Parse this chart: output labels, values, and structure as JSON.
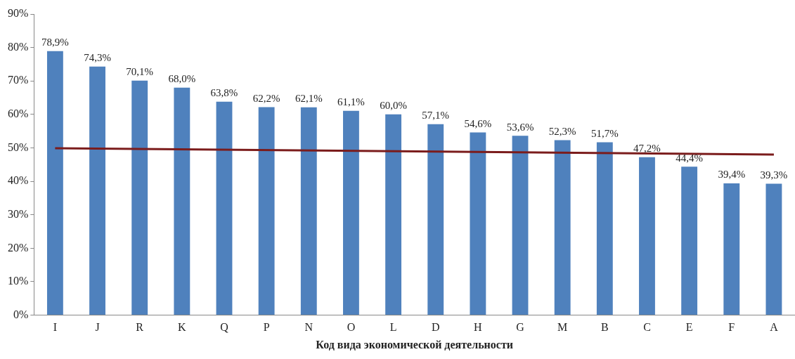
{
  "chart_data": {
    "type": "bar",
    "xlabel": "Код вида экономической деятельности",
    "categories": [
      "I",
      "J",
      "R",
      "K",
      "Q",
      "P",
      "N",
      "O",
      "L",
      "D",
      "H",
      "G",
      "M",
      "B",
      "C",
      "E",
      "F",
      "A"
    ],
    "series": [
      {
        "color": "#4f81bd",
        "values": [
          78.9,
          74.3,
          70.1,
          68.0,
          63.8,
          62.2,
          62.1,
          61.1,
          60.0,
          57.1,
          54.6,
          53.6,
          52.3,
          51.7,
          47.2,
          44.4,
          39.4,
          39.3
        ],
        "value_labels": [
          "78,9%",
          "74,3%",
          "70,1%",
          "68,0%",
          "63,8%",
          "62,2%",
          "62,1%",
          "61,1%",
          "60,0%",
          "57,1%",
          "54,6%",
          "53,6%",
          "52,3%",
          "51,7%",
          "47,2%",
          "44,4%",
          "39,4%",
          "39,3%"
        ]
      },
      {
        "type": "line",
        "color": "#7b1c1c",
        "x": [
          "I",
          "A"
        ],
        "values": [
          49.9,
          48.0
        ]
      }
    ],
    "ylim": [
      0,
      90
    ],
    "yticks": [
      {
        "value": 0,
        "label": "0%"
      },
      {
        "value": 10,
        "label": "10%"
      },
      {
        "value": 20,
        "label": "20%"
      },
      {
        "value": 30,
        "label": "30%"
      },
      {
        "value": 40,
        "label": "40%"
      },
      {
        "value": 50,
        "label": "50%"
      },
      {
        "value": 60,
        "label": "60%"
      },
      {
        "value": 70,
        "label": "70%"
      },
      {
        "value": 80,
        "label": "80%"
      },
      {
        "value": 90,
        "label": "90%"
      }
    ],
    "grid": false,
    "legend": false
  }
}
